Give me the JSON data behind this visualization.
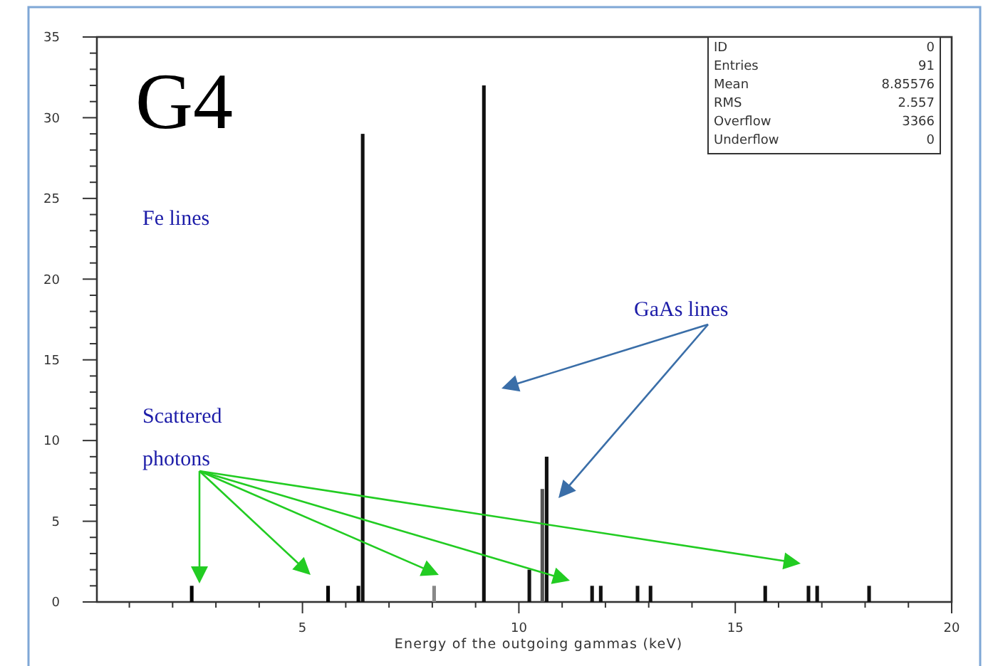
{
  "chart_data": {
    "type": "histogram",
    "xlabel": "Energy of the outgoing gammas (keV)",
    "bins": [
      2.4,
      2.5,
      5.55,
      5.65,
      6.25,
      6.35,
      6.45,
      8.0,
      8.1,
      9.15,
      9.25,
      10.2,
      10.3,
      10.5,
      10.6,
      10.7,
      11.65,
      11.75,
      11.85,
      11.95,
      12.7,
      12.8,
      13.0,
      13.1,
      15.65,
      15.75,
      16.65,
      16.75,
      16.85,
      16.95,
      18.05,
      18.15
    ],
    "values": [
      1,
      0,
      1,
      0,
      1,
      29,
      0,
      1,
      0,
      32,
      0,
      2,
      0,
      7,
      9,
      0,
      1,
      0,
      1,
      0,
      1,
      0,
      1,
      0,
      1,
      0,
      1,
      0,
      1,
      0,
      1
    ],
    "colors": [
      "#000000",
      "#000000",
      "#000000",
      "#000000",
      "#000000",
      "#111111",
      "#000000",
      "#888888",
      "#000000",
      "#111111",
      "#000000",
      "#111111",
      "#000000",
      "#555555",
      "#111111",
      "#000000",
      "#111111",
      "#000000",
      "#111111",
      "#000000",
      "#111111",
      "#000000",
      "#111111",
      "#000000",
      "#111111",
      "#000000",
      "#111111",
      "#000000",
      "#111111",
      "#000000",
      "#111111"
    ],
    "xlim": [
      0.25,
      20
    ],
    "xticks": [
      {
        "value": 1,
        "label": null
      },
      {
        "value": 2,
        "label": null
      },
      {
        "value": 3,
        "label": null
      },
      {
        "value": 4,
        "label": null
      },
      5,
      {
        "value": 6,
        "label": null
      },
      {
        "value": 7,
        "label": null
      },
      {
        "value": 8,
        "label": null
      },
      {
        "value": 9,
        "label": null
      },
      10,
      {
        "value": 11,
        "label": null
      },
      {
        "value": 12,
        "label": null
      },
      {
        "value": 13,
        "label": null
      },
      {
        "value": 14,
        "label": null
      },
      15,
      {
        "value": 16,
        "label": null
      },
      {
        "value": 17,
        "label": null
      },
      {
        "value": 18,
        "label": null
      },
      {
        "value": 19,
        "label": null
      },
      20
    ],
    "ylim": [
      0,
      35
    ],
    "yticks": [
      0,
      {
        "value": 1,
        "label": null
      },
      {
        "value": 2,
        "label": null
      },
      {
        "value": 3,
        "label": null
      },
      {
        "value": 4,
        "label": null
      },
      5,
      {
        "value": 6,
        "label": null
      },
      {
        "value": 7,
        "label": null
      },
      {
        "value": 8,
        "label": null
      },
      {
        "value": 9,
        "label": null
      },
      10,
      {
        "value": 11,
        "label": null
      },
      {
        "value": 12,
        "label": null
      },
      {
        "value": 13,
        "label": null
      },
      {
        "value": 14,
        "label": null
      },
      15,
      {
        "value": 16,
        "label": null
      },
      {
        "value": 17,
        "label": null
      },
      {
        "value": 18,
        "label": null
      },
      {
        "value": 19,
        "label": null
      },
      20,
      {
        "value": 21,
        "label": null
      },
      {
        "value": 22,
        "label": null
      },
      {
        "value": 23,
        "label": null
      },
      {
        "value": 24,
        "label": null
      },
      25,
      {
        "value": 26,
        "label": null
      },
      {
        "value": 27,
        "label": null
      },
      {
        "value": 28,
        "label": null
      },
      {
        "value": 29,
        "label": null
      },
      30,
      {
        "value": 31,
        "label": null
      },
      {
        "value": 32,
        "label": null
      },
      {
        "value": 33,
        "label": null
      },
      {
        "value": 34,
        "label": null
      },
      35
    ],
    "annotations": [
      "G4",
      "Fe lines",
      "GaAs lines",
      "Scattered photons",
      "ID 0",
      "Entries 91",
      "Mean 8.85576",
      "RMS 2.557",
      "Overflow 3366",
      "Underflow 0"
    ]
  }
}
